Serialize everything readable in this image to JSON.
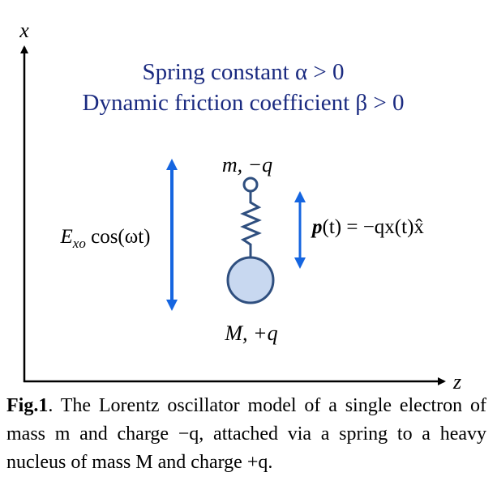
{
  "figure": {
    "axis_x_label": "x",
    "axis_z_label": "z",
    "line1": "Spring constant α > 0",
    "line2": "Dynamic friction coefficient β > 0",
    "electron_label": "m, −q",
    "nucleus_label": "M, +q",
    "field_label": {
      "symbol": "E",
      "subscript": "xo",
      "rest": " cos(ωt)"
    },
    "dipole_label": {
      "symbol": "p",
      "rest": "(t) = −qx(t)x̂"
    }
  },
  "caption": {
    "label": "Fig.1",
    "text": ". The Lorentz oscillator model of a single electron of mass m and charge −q, attached via a spring to a heavy nucleus of mass M and charge +q."
  }
}
